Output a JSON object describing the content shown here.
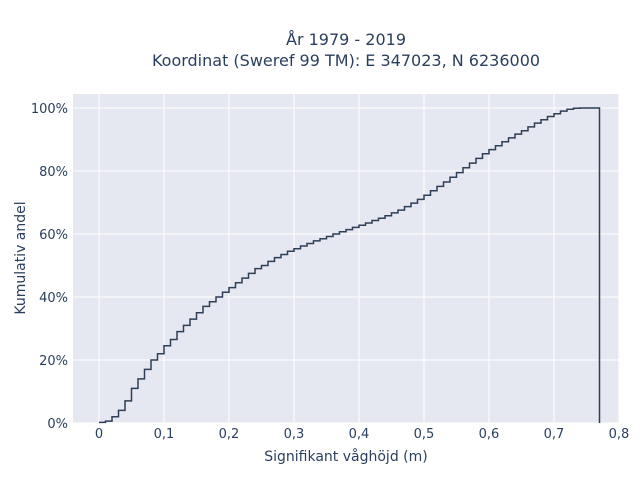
{
  "chart_data": {
    "type": "line",
    "title": "År 1979 - 2019",
    "subtitle": "Koordinat (Sweref 99 TM): E 347023, N 6236000",
    "xlabel": "Signifikant våghöjd (m)",
    "ylabel": "Kumulativ andel",
    "xlim": [
      -0.04,
      0.8
    ],
    "ylim": [
      0,
      1.03
    ],
    "x_ticks": [
      0,
      0.1,
      0.2,
      0.3,
      0.4,
      0.5,
      0.6,
      0.7,
      0.8
    ],
    "x_tick_labels": [
      "0",
      "0,1",
      "0,2",
      "0,3",
      "0,4",
      "0,5",
      "0,6",
      "0,7",
      "0,8"
    ],
    "y_ticks": [
      0,
      0.2,
      0.4,
      0.6,
      0.8,
      1.0
    ],
    "y_tick_labels": [
      "0%",
      "20%",
      "40%",
      "60%",
      "80%",
      "100%"
    ],
    "grid": true,
    "line_color": "#2f3f55",
    "background_color": "#e5e8f0",
    "step_x": [
      0,
      0.01,
      0.02,
      0.03,
      0.04,
      0.05,
      0.06,
      0.07,
      0.08,
      0.09,
      0.1,
      0.11,
      0.12,
      0.13,
      0.14,
      0.15,
      0.16,
      0.17,
      0.18,
      0.19,
      0.2,
      0.21,
      0.22,
      0.23,
      0.24,
      0.25,
      0.26,
      0.27,
      0.28,
      0.29,
      0.3,
      0.31,
      0.32,
      0.33,
      0.34,
      0.35,
      0.36,
      0.37,
      0.38,
      0.39,
      0.4,
      0.41,
      0.42,
      0.43,
      0.44,
      0.45,
      0.46,
      0.47,
      0.48,
      0.49,
      0.5,
      0.51,
      0.52,
      0.53,
      0.54,
      0.55,
      0.56,
      0.57,
      0.58,
      0.59,
      0.6,
      0.61,
      0.62,
      0.63,
      0.64,
      0.65,
      0.66,
      0.67,
      0.68,
      0.69,
      0.7,
      0.71,
      0.72,
      0.73,
      0.74,
      0.75,
      0.77
    ],
    "step_y": [
      0.002,
      0.006,
      0.02,
      0.04,
      0.07,
      0.11,
      0.14,
      0.17,
      0.2,
      0.22,
      0.245,
      0.265,
      0.29,
      0.31,
      0.33,
      0.35,
      0.37,
      0.385,
      0.4,
      0.415,
      0.43,
      0.445,
      0.46,
      0.475,
      0.49,
      0.5,
      0.513,
      0.525,
      0.535,
      0.545,
      0.553,
      0.562,
      0.57,
      0.578,
      0.585,
      0.592,
      0.6,
      0.607,
      0.614,
      0.621,
      0.628,
      0.635,
      0.643,
      0.65,
      0.658,
      0.667,
      0.676,
      0.687,
      0.698,
      0.71,
      0.723,
      0.737,
      0.751,
      0.765,
      0.78,
      0.795,
      0.81,
      0.825,
      0.84,
      0.855,
      0.868,
      0.88,
      0.893,
      0.905,
      0.917,
      0.928,
      0.94,
      0.952,
      0.963,
      0.973,
      0.982,
      0.99,
      0.996,
      0.999,
      1.0,
      1.0,
      1.0
    ]
  }
}
